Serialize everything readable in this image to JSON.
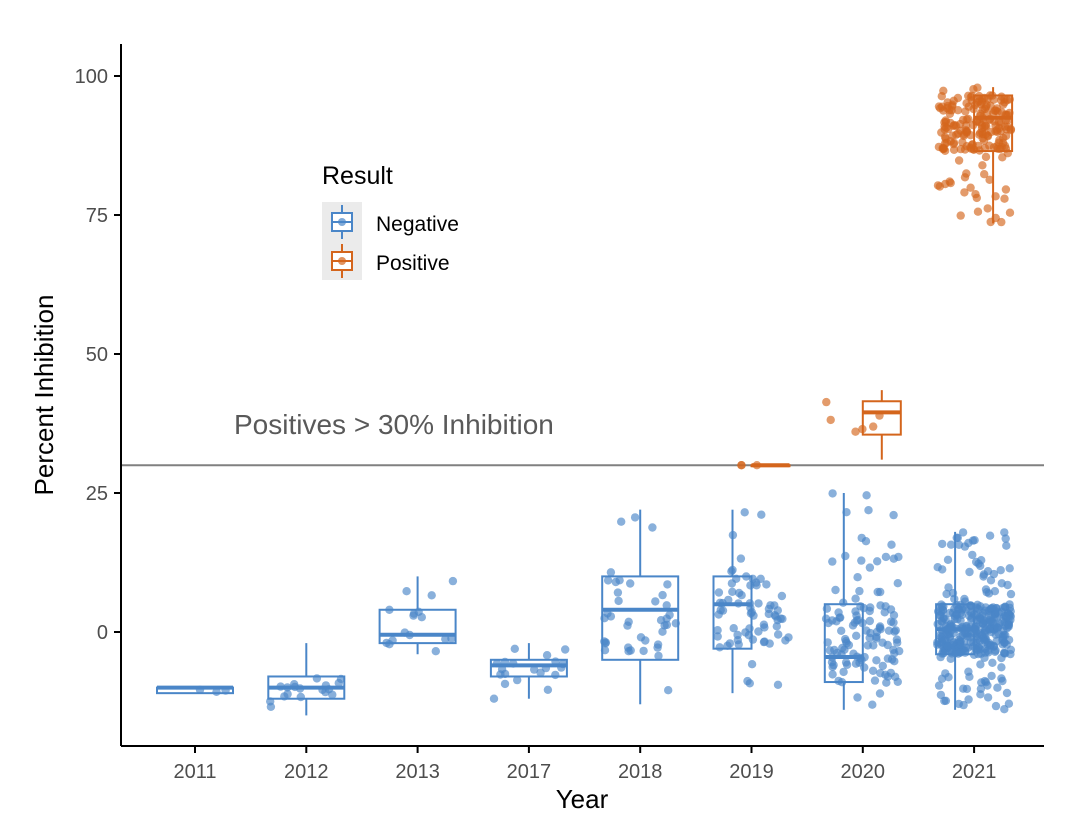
{
  "chart_data": {
    "type": "box-jitter",
    "title": "",
    "xlabel": "Year",
    "ylabel": "Percent Inhibition",
    "categories": [
      "2011",
      "2012",
      "2013",
      "2017",
      "2018",
      "2019",
      "2020",
      "2021"
    ],
    "yticks": [
      0,
      25,
      50,
      75,
      100
    ],
    "ylim": [
      -20,
      106
    ],
    "threshold": {
      "value": 30,
      "label": "Positives > 30% Inhibition",
      "color": "#808080"
    },
    "legend": {
      "title": "Result",
      "position": "top-left",
      "entries": [
        "Negative",
        "Positive"
      ]
    },
    "colors": {
      "Negative": "#4a86c8",
      "Positive": "#d4651c",
      "axis": "#000000"
    },
    "series": [
      {
        "name": "Negative",
        "boxes": [
          {
            "year": "2011",
            "lw": -11,
            "q1": -11,
            "med": -10,
            "q3": -10,
            "hw": -10,
            "n": 3
          },
          {
            "year": "2012",
            "lw": -15,
            "q1": -12,
            "med": -10,
            "q3": -8,
            "hw": -2,
            "n": 18
          },
          {
            "year": "2013",
            "lw": -4,
            "q1": -2,
            "med": -0.5,
            "q3": 4,
            "hw": 10,
            "n": 16
          },
          {
            "year": "2017",
            "lw": -12,
            "q1": -8,
            "med": -6,
            "q3": -5,
            "hw": -2,
            "n": 20
          },
          {
            "year": "2018",
            "lw": -13,
            "q1": -5,
            "med": 4,
            "q3": 10,
            "hw": 22,
            "n": 40
          },
          {
            "year": "2019",
            "lw": -11,
            "q1": -3,
            "med": 5,
            "q3": 10,
            "hw": 22,
            "n": 70
          },
          {
            "year": "2020",
            "lw": -14,
            "q1": -9,
            "med": -4.5,
            "q3": 5,
            "hw": 25,
            "n": 120
          },
          {
            "year": "2021",
            "lw": -14,
            "q1": -4,
            "med": 0.5,
            "q3": 5,
            "hw": 18,
            "n": 350
          }
        ]
      },
      {
        "name": "Positive",
        "boxes": [
          {
            "year": "2019",
            "lw": 30,
            "q1": 30,
            "med": 30,
            "q3": 30,
            "hw": 30,
            "n": 3
          },
          {
            "year": "2020",
            "lw": 31,
            "q1": 35.5,
            "med": 39.5,
            "q3": 41.5,
            "hw": 43.5,
            "n": 6
          },
          {
            "year": "2021",
            "lw": 73.5,
            "q1": 86.5,
            "med": 92.5,
            "q3": 96.5,
            "hw": 98,
            "n": 200
          }
        ]
      }
    ]
  }
}
